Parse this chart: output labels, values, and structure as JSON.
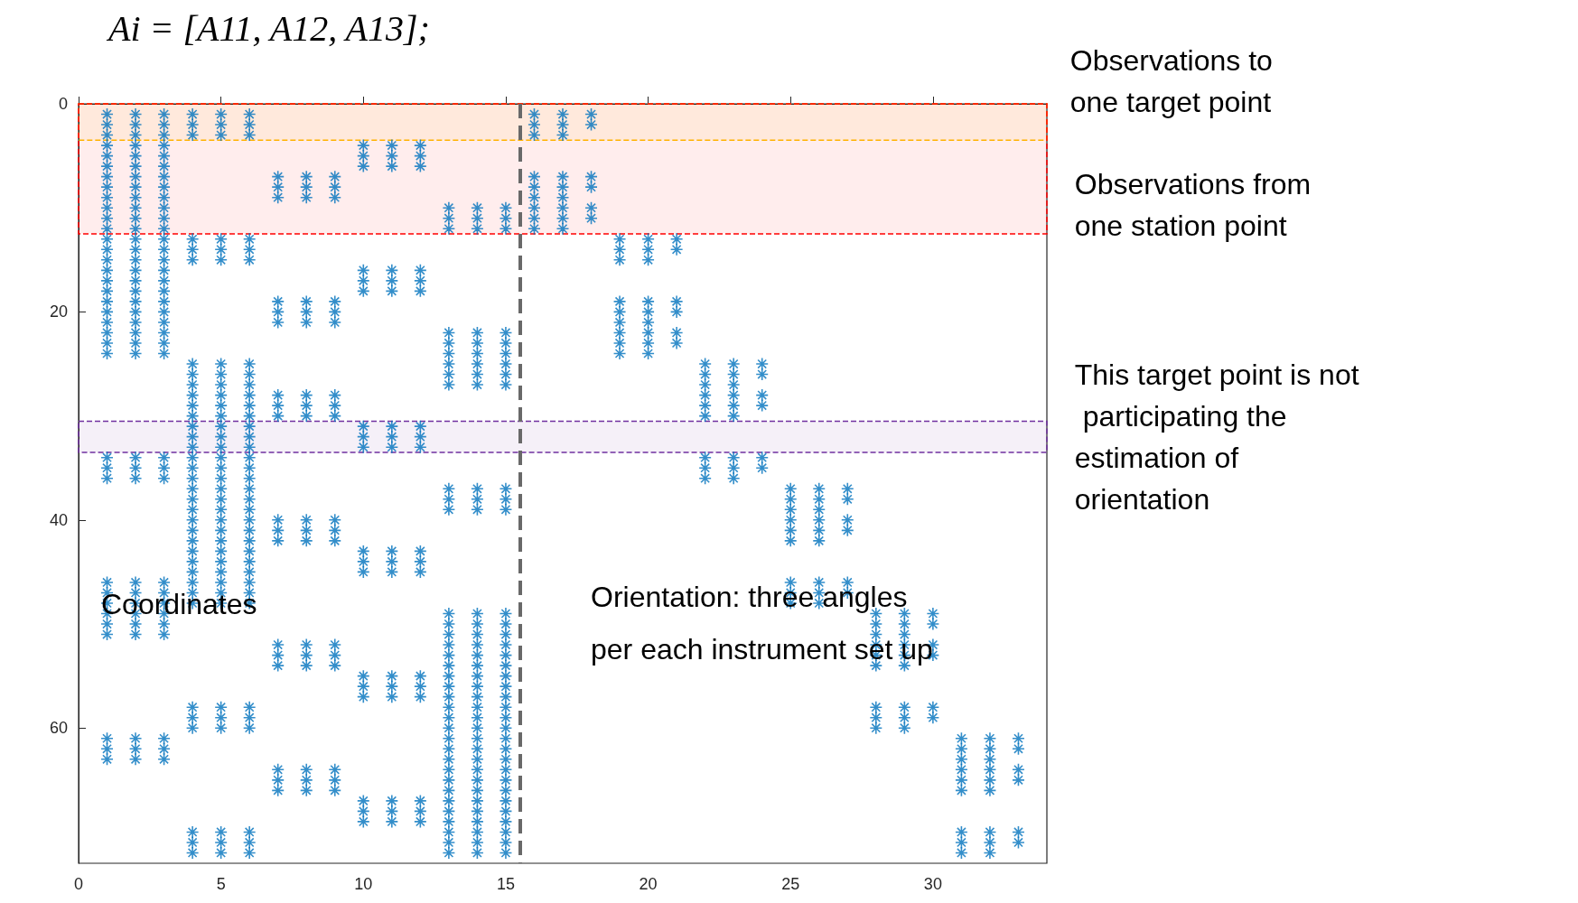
{
  "chart_data": {
    "type": "scatter",
    "title": "Ai = [A11, A12, A13];",
    "color": "#0072bd",
    "marker": "cross",
    "grid": false,
    "xlim": [
      0,
      34
    ],
    "xticks": [
      0,
      5,
      10,
      15,
      20,
      25,
      30
    ],
    "ylim": [
      73,
      0
    ],
    "yticks": [
      0,
      20,
      40,
      60
    ],
    "annotations": [
      "Coordinates",
      "Orientation: three angles per each instrument set up"
    ],
    "ref_lines": [
      {
        "axis": "x",
        "value": 15.5,
        "color": "#696969",
        "line_style": "dashed"
      }
    ],
    "bands": [
      {
        "axis": "y",
        "from": 0,
        "to": 3.5,
        "label": "Observations to one target point",
        "color": "#ffc000"
      },
      {
        "axis": "y",
        "from": 0,
        "to": 12.5,
        "label": "Observations from one station point",
        "color": "#ff0000"
      },
      {
        "axis": "y",
        "from": 30.5,
        "to": 33.5,
        "label": "This target point is not participating the estimation of orientation",
        "color": "#7030a0"
      }
    ],
    "series": [
      {
        "x": [
          1,
          1,
          1,
          1,
          1,
          1,
          1,
          1,
          1,
          1,
          1,
          1,
          1,
          1,
          1,
          1,
          1,
          1,
          1,
          1,
          1,
          1,
          1,
          1,
          1,
          1,
          1,
          1,
          1,
          1,
          1,
          1,
          1,
          1,
          1,
          1
        ],
        "values": [
          1,
          2,
          3,
          4,
          5,
          6,
          7,
          8,
          9,
          10,
          11,
          12,
          13,
          14,
          15,
          16,
          17,
          18,
          19,
          20,
          21,
          22,
          23,
          24,
          34,
          35,
          36,
          46,
          47,
          48,
          49,
          50,
          51,
          61,
          62,
          63
        ]
      },
      {
        "x": [
          2,
          2,
          2,
          2,
          2,
          2,
          2,
          2,
          2,
          2,
          2,
          2,
          2,
          2,
          2,
          2,
          2,
          2,
          2,
          2,
          2,
          2,
          2,
          2,
          2,
          2,
          2,
          2,
          2,
          2,
          2,
          2,
          2,
          2,
          2,
          2
        ],
        "values": [
          1,
          2,
          3,
          4,
          5,
          6,
          7,
          8,
          9,
          10,
          11,
          12,
          13,
          14,
          15,
          16,
          17,
          18,
          19,
          20,
          21,
          22,
          23,
          24,
          34,
          35,
          36,
          46,
          47,
          48,
          49,
          50,
          51,
          61,
          62,
          63
        ]
      },
      {
        "x": [
          3,
          3,
          3,
          3,
          3,
          3,
          3,
          3,
          3,
          3,
          3,
          3,
          3,
          3,
          3,
          3,
          3,
          3,
          3,
          3,
          3,
          3,
          3,
          3,
          3,
          3,
          3,
          3,
          3,
          3,
          3,
          3,
          3,
          3,
          3,
          3
        ],
        "values": [
          1,
          2,
          3,
          4,
          5,
          6,
          7,
          8,
          9,
          10,
          11,
          12,
          13,
          14,
          15,
          16,
          17,
          18,
          19,
          20,
          21,
          22,
          23,
          24,
          34,
          35,
          36,
          46,
          47,
          48,
          49,
          50,
          51,
          61,
          62,
          63
        ]
      },
      {
        "x": [
          4,
          4,
          4,
          4,
          4,
          4,
          4,
          4,
          4,
          4,
          4,
          4,
          4,
          4,
          4,
          4,
          4,
          4,
          4,
          4,
          4,
          4,
          4,
          4,
          4,
          4,
          4,
          4,
          4,
          4,
          4,
          4,
          4,
          4,
          4,
          4
        ],
        "values": [
          1,
          2,
          3,
          13,
          14,
          15,
          25,
          26,
          27,
          28,
          29,
          30,
          31,
          32,
          33,
          34,
          35,
          36,
          37,
          38,
          39,
          40,
          41,
          42,
          43,
          44,
          45,
          46,
          47,
          48,
          58,
          59,
          60,
          70,
          71,
          72
        ]
      },
      {
        "x": [
          5,
          5,
          5,
          5,
          5,
          5,
          5,
          5,
          5,
          5,
          5,
          5,
          5,
          5,
          5,
          5,
          5,
          5,
          5,
          5,
          5,
          5,
          5,
          5,
          5,
          5,
          5,
          5,
          5,
          5,
          5,
          5,
          5,
          5,
          5,
          5
        ],
        "values": [
          1,
          2,
          3,
          13,
          14,
          15,
          25,
          26,
          27,
          28,
          29,
          30,
          31,
          32,
          33,
          34,
          35,
          36,
          37,
          38,
          39,
          40,
          41,
          42,
          43,
          44,
          45,
          46,
          47,
          48,
          58,
          59,
          60,
          70,
          71,
          72
        ]
      },
      {
        "x": [
          6,
          6,
          6,
          6,
          6,
          6,
          6,
          6,
          6,
          6,
          6,
          6,
          6,
          6,
          6,
          6,
          6,
          6,
          6,
          6,
          6,
          6,
          6,
          6,
          6,
          6,
          6,
          6,
          6,
          6,
          6,
          6,
          6,
          6,
          6,
          6
        ],
        "values": [
          1,
          2,
          3,
          13,
          14,
          15,
          25,
          26,
          27,
          28,
          29,
          30,
          31,
          32,
          33,
          34,
          35,
          36,
          37,
          38,
          39,
          40,
          41,
          42,
          43,
          44,
          45,
          46,
          47,
          48,
          58,
          59,
          60,
          70,
          71,
          72
        ]
      },
      {
        "x": [
          7,
          7,
          7,
          7,
          7,
          7,
          7,
          7,
          7,
          7,
          7,
          7,
          7,
          7,
          7,
          7,
          7,
          7
        ],
        "values": [
          7,
          8,
          9,
          19,
          20,
          21,
          28,
          29,
          30,
          40,
          41,
          42,
          52,
          53,
          54,
          64,
          65,
          66
        ]
      },
      {
        "x": [
          8,
          8,
          8,
          8,
          8,
          8,
          8,
          8,
          8,
          8,
          8,
          8,
          8,
          8,
          8,
          8,
          8,
          8
        ],
        "values": [
          7,
          8,
          9,
          19,
          20,
          21,
          28,
          29,
          30,
          40,
          41,
          42,
          52,
          53,
          54,
          64,
          65,
          66
        ]
      },
      {
        "x": [
          9,
          9,
          9,
          9,
          9,
          9,
          9,
          9,
          9,
          9,
          9,
          9,
          9,
          9,
          9,
          9,
          9,
          9
        ],
        "values": [
          7,
          8,
          9,
          19,
          20,
          21,
          28,
          29,
          30,
          40,
          41,
          42,
          52,
          53,
          54,
          64,
          65,
          66
        ]
      },
      {
        "x": [
          10,
          10,
          10,
          10,
          10,
          10,
          10,
          10,
          10,
          10,
          10,
          10,
          10,
          10,
          10,
          10,
          10,
          10
        ],
        "values": [
          4,
          5,
          6,
          16,
          17,
          18,
          31,
          32,
          33,
          43,
          44,
          45,
          55,
          56,
          57,
          67,
          68,
          69
        ]
      },
      {
        "x": [
          11,
          11,
          11,
          11,
          11,
          11,
          11,
          11,
          11,
          11,
          11,
          11,
          11,
          11,
          11,
          11,
          11,
          11
        ],
        "values": [
          4,
          5,
          6,
          16,
          17,
          18,
          31,
          32,
          33,
          43,
          44,
          45,
          55,
          56,
          57,
          67,
          68,
          69
        ]
      },
      {
        "x": [
          12,
          12,
          12,
          12,
          12,
          12,
          12,
          12,
          12,
          12,
          12,
          12,
          12,
          12,
          12,
          12,
          12,
          12
        ],
        "values": [
          4,
          5,
          6,
          16,
          17,
          18,
          31,
          32,
          33,
          43,
          44,
          45,
          55,
          56,
          57,
          67,
          68,
          69
        ]
      },
      {
        "x": [
          13,
          13,
          13,
          13,
          13,
          13,
          13,
          13,
          13,
          13,
          13,
          13,
          13,
          13,
          13,
          13,
          13,
          13,
          13,
          13,
          13,
          13,
          13,
          13,
          13,
          13,
          13,
          13,
          13,
          13,
          13,
          13,
          13,
          13,
          13,
          13
        ],
        "values": [
          10,
          11,
          12,
          22,
          23,
          24,
          25,
          26,
          27,
          37,
          38,
          39,
          49,
          50,
          51,
          52,
          53,
          54,
          55,
          56,
          57,
          58,
          59,
          60,
          61,
          62,
          63,
          64,
          65,
          66,
          67,
          68,
          69,
          70,
          71,
          72
        ]
      },
      {
        "x": [
          14,
          14,
          14,
          14,
          14,
          14,
          14,
          14,
          14,
          14,
          14,
          14,
          14,
          14,
          14,
          14,
          14,
          14,
          14,
          14,
          14,
          14,
          14,
          14,
          14,
          14,
          14,
          14,
          14,
          14,
          14,
          14,
          14,
          14,
          14,
          14
        ],
        "values": [
          10,
          11,
          12,
          22,
          23,
          24,
          25,
          26,
          27,
          37,
          38,
          39,
          49,
          50,
          51,
          52,
          53,
          54,
          55,
          56,
          57,
          58,
          59,
          60,
          61,
          62,
          63,
          64,
          65,
          66,
          67,
          68,
          69,
          70,
          71,
          72
        ]
      },
      {
        "x": [
          15,
          15,
          15,
          15,
          15,
          15,
          15,
          15,
          15,
          15,
          15,
          15,
          15,
          15,
          15,
          15,
          15,
          15,
          15,
          15,
          15,
          15,
          15,
          15,
          15,
          15,
          15,
          15,
          15,
          15,
          15,
          15,
          15,
          15,
          15,
          15
        ],
        "values": [
          10,
          11,
          12,
          22,
          23,
          24,
          25,
          26,
          27,
          37,
          38,
          39,
          49,
          50,
          51,
          52,
          53,
          54,
          55,
          56,
          57,
          58,
          59,
          60,
          61,
          62,
          63,
          64,
          65,
          66,
          67,
          68,
          69,
          70,
          71,
          72
        ]
      },
      {
        "x": [
          16,
          16,
          16,
          16,
          16,
          16,
          16,
          16,
          16
        ],
        "values": [
          1,
          2,
          3,
          7,
          8,
          9,
          10,
          11,
          12
        ]
      },
      {
        "x": [
          17,
          17,
          17,
          17,
          17,
          17,
          17,
          17,
          17
        ],
        "values": [
          1,
          2,
          3,
          7,
          8,
          9,
          10,
          11,
          12
        ]
      },
      {
        "x": [
          18,
          18,
          18,
          18,
          18,
          18
        ],
        "values": [
          1,
          2,
          7,
          8,
          10,
          11
        ]
      },
      {
        "x": [
          19,
          19,
          19,
          19,
          19,
          19,
          19,
          19,
          19
        ],
        "values": [
          13,
          14,
          15,
          19,
          20,
          21,
          22,
          23,
          24
        ]
      },
      {
        "x": [
          20,
          20,
          20,
          20,
          20,
          20,
          20,
          20,
          20
        ],
        "values": [
          13,
          14,
          15,
          19,
          20,
          21,
          22,
          23,
          24
        ]
      },
      {
        "x": [
          21,
          21,
          21,
          21,
          21,
          21
        ],
        "values": [
          13,
          14,
          19,
          20,
          22,
          23
        ]
      },
      {
        "x": [
          22,
          22,
          22,
          22,
          22,
          22,
          22,
          22,
          22
        ],
        "values": [
          25,
          26,
          27,
          28,
          29,
          30,
          34,
          35,
          36
        ]
      },
      {
        "x": [
          23,
          23,
          23,
          23,
          23,
          23,
          23,
          23,
          23
        ],
        "values": [
          25,
          26,
          27,
          28,
          29,
          30,
          34,
          35,
          36
        ]
      },
      {
        "x": [
          24,
          24,
          24,
          24,
          24,
          24
        ],
        "values": [
          25,
          26,
          28,
          29,
          34,
          35
        ]
      },
      {
        "x": [
          25,
          25,
          25,
          25,
          25,
          25,
          25,
          25,
          25
        ],
        "values": [
          37,
          38,
          39,
          40,
          41,
          42,
          46,
          47,
          48
        ]
      },
      {
        "x": [
          26,
          26,
          26,
          26,
          26,
          26,
          26,
          26,
          26
        ],
        "values": [
          37,
          38,
          39,
          40,
          41,
          42,
          46,
          47,
          48
        ]
      },
      {
        "x": [
          27,
          27,
          27,
          27,
          27,
          27
        ],
        "values": [
          37,
          38,
          40,
          41,
          46,
          47
        ]
      },
      {
        "x": [
          28,
          28,
          28,
          28,
          28,
          28,
          28,
          28,
          28
        ],
        "values": [
          49,
          50,
          51,
          52,
          53,
          54,
          58,
          59,
          60
        ]
      },
      {
        "x": [
          29,
          29,
          29,
          29,
          29,
          29,
          29,
          29,
          29
        ],
        "values": [
          49,
          50,
          51,
          52,
          53,
          54,
          58,
          59,
          60
        ]
      },
      {
        "x": [
          30,
          30,
          30,
          30,
          30,
          30
        ],
        "values": [
          49,
          50,
          52,
          53,
          58,
          59
        ]
      },
      {
        "x": [
          31,
          31,
          31,
          31,
          31,
          31,
          31,
          31,
          31
        ],
        "values": [
          61,
          62,
          63,
          64,
          65,
          66,
          70,
          71,
          72
        ]
      },
      {
        "x": [
          32,
          32,
          32,
          32,
          32,
          32,
          32,
          32,
          32
        ],
        "values": [
          61,
          62,
          63,
          64,
          65,
          66,
          70,
          71,
          72
        ]
      },
      {
        "x": [
          33,
          33,
          33,
          33,
          33,
          33
        ],
        "values": [
          61,
          62,
          64,
          65,
          70,
          71
        ]
      }
    ]
  }
}
